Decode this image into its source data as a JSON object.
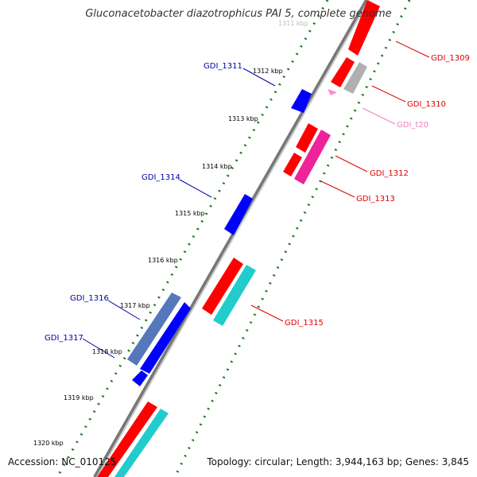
{
  "title": "Gluconacetobacter diazotrophicus PAI 5, complete genome",
  "footer": {
    "accession": "Accession: NC_010125",
    "topology": "Topology: circular; Length: 3,944,163 bp; Genes: 3,845"
  },
  "colors": {
    "backbone": "#777777",
    "forward_cds": "#ff0000",
    "reverse_cds": "#0000ff",
    "trna": "#ff88cc",
    "tick": "#1a7a1a",
    "gray_gene": "#b0b0b0",
    "cyan_gene": "#22cccc",
    "magenta_gene": "#ee2299"
  },
  "ticks": [
    "1311 kbp",
    "1312 kbp",
    "1313 kbp",
    "1314 kbp",
    "1315 kbp",
    "1316 kbp",
    "1317 kbp",
    "1318 kbp",
    "1319 kbp",
    "1320 kbp"
  ],
  "genes": [
    {
      "label": "GDI_1309",
      "color": "#dd0000"
    },
    {
      "label": "GDI_1310",
      "color": "#dd0000"
    },
    {
      "label": "GDI_t20",
      "color": "#f080c0"
    },
    {
      "label": "GDI_1311",
      "color": "#0000aa"
    },
    {
      "label": "GDI_1312",
      "color": "#dd0000"
    },
    {
      "label": "GDI_1313",
      "color": "#dd0000"
    },
    {
      "label": "GDI_1314",
      "color": "#0000aa"
    },
    {
      "label": "GDI_1315",
      "color": "#dd0000"
    },
    {
      "label": "GDI_1316",
      "color": "#0000aa"
    },
    {
      "label": "GDI_1317",
      "color": "#0000aa"
    }
  ]
}
